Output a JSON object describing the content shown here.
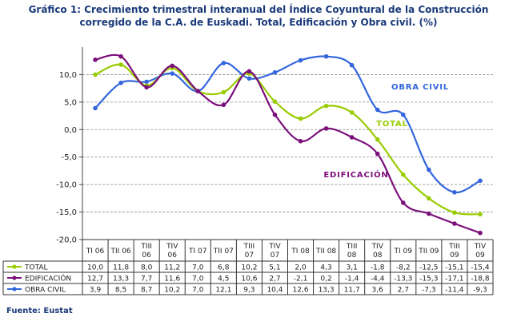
{
  "title_line1": "Gráfico 1: Crecimiento trimestral interanual del Índice Coyuntural de la Construcción",
  "title_line2": "corregido de la C.A. de Euskadi. Total, Edificación y Obra civil. (%)",
  "source": "Fuente: Eustat",
  "chart_data": {
    "type": "line",
    "categories": [
      [
        "TI 06"
      ],
      [
        "TII 06"
      ],
      [
        "TIII",
        "06"
      ],
      [
        "TIV",
        "06"
      ],
      [
        "TI 07"
      ],
      [
        "TII 07"
      ],
      [
        "TIII",
        "07"
      ],
      [
        "TIV",
        "07"
      ],
      [
        "TI 08"
      ],
      [
        "TII 08"
      ],
      [
        "TIII",
        "08"
      ],
      [
        "TIV",
        "08"
      ],
      [
        "TI 09"
      ],
      [
        "TII 09"
      ],
      [
        "TIII",
        "09"
      ],
      [
        "TIV",
        "09"
      ]
    ],
    "ylim": [
      -20,
      15
    ],
    "yticks": [
      -20,
      -15,
      -10,
      -5,
      0,
      5,
      10
    ],
    "ytick_labels": [
      "-20,0",
      "-15,0",
      "-10,0",
      "-5,0",
      "0,0",
      "5,0",
      "10,0"
    ],
    "grid": true,
    "series": [
      {
        "name": "TOTAL",
        "label": "TOTAL",
        "color": "#99cc00",
        "values": [
          10.0,
          11.8,
          8.0,
          11.2,
          7.0,
          6.8,
          10.2,
          5.1,
          2.0,
          4.3,
          3.1,
          -1.8,
          -8.2,
          -12.5,
          -15.1,
          -15.4
        ],
        "labels": [
          "10,0",
          "11,8",
          "8,0",
          "11,2",
          "7,0",
          "6,8",
          "10,2",
          "5,1",
          "2,0",
          "4,3",
          "3,1",
          "-1,8",
          "-8,2",
          "-12,5",
          "-15,1",
          "-15,4"
        ]
      },
      {
        "name": "EDIFICACIÓN",
        "label": "EDIFICACIÓN",
        "color": "#7b0f7b",
        "values": [
          12.7,
          13.3,
          7.7,
          11.6,
          7.0,
          4.5,
          10.6,
          2.7,
          -2.1,
          0.2,
          -1.4,
          -4.4,
          -13.3,
          -15.3,
          -17.1,
          -18.8
        ],
        "labels": [
          "12,7",
          "13,3",
          "7,7",
          "11,6",
          "7,0",
          "4,5",
          "10,6",
          "2,7",
          "-2,1",
          "0,2",
          "-1,4",
          "-4,4",
          "-13,3",
          "-15,3",
          "-17,1",
          "-18,8"
        ]
      },
      {
        "name": "OBRA CIVIL",
        "label": "OBRA CIVIL",
        "color": "#3366dd",
        "values": [
          3.9,
          8.5,
          8.7,
          10.2,
          7.0,
          12.1,
          9.3,
          10.4,
          12.6,
          13.3,
          11.7,
          3.6,
          2.7,
          -7.3,
          -11.4,
          -9.3
        ],
        "labels": [
          "3,9",
          "8,5",
          "8,7",
          "10,2",
          "7,0",
          "12,1",
          "9,3",
          "10,4",
          "12,6",
          "13,3",
          "11,7",
          "3,6",
          "2,7",
          "-7,3",
          "-11,4",
          "-9,3"
        ]
      }
    ],
    "annotations": [
      "OBRA CIVIL",
      "TOTAL",
      "EDIFICACIÓN"
    ]
  }
}
